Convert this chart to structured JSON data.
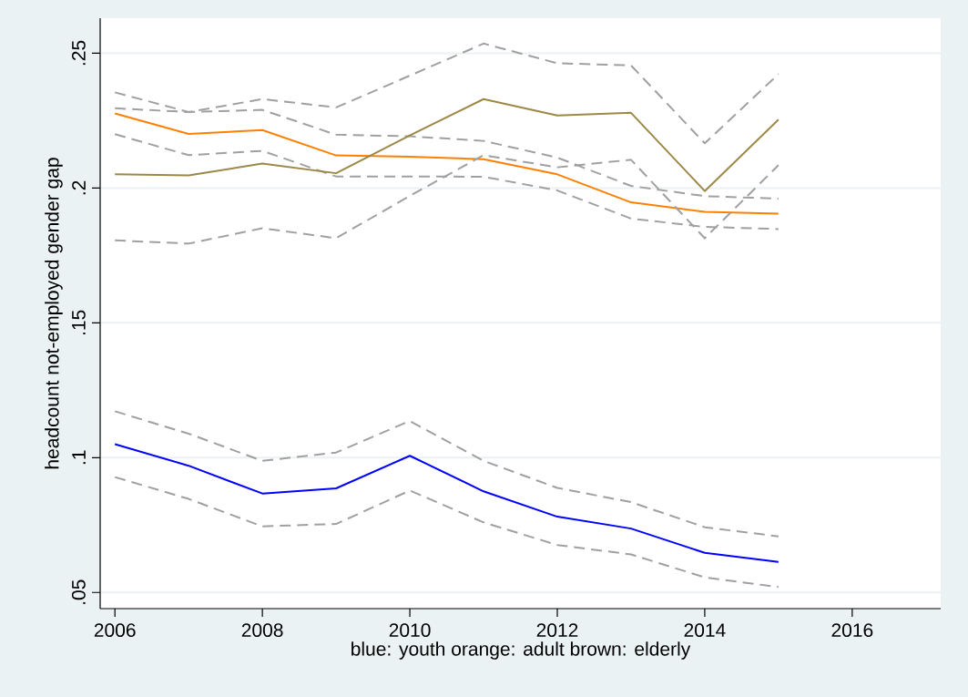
{
  "chart_data": {
    "type": "line",
    "xlabel": "blue: youth  orange: adult  brown: elderly",
    "ylabel": "headcount not-employed gender gap",
    "x": [
      2006,
      2007,
      2008,
      2009,
      2010,
      2011,
      2012,
      2013,
      2014,
      2015
    ],
    "series": [
      {
        "color": "#0000ff",
        "line_style": "solid",
        "values": [
          0.105,
          0.097,
          0.0867,
          0.0886,
          0.1007,
          0.0875,
          0.0781,
          0.0737,
          0.0647,
          0.0613
        ]
      },
      {
        "color": "#a0a0a0",
        "line_style": "dashed",
        "values": [
          0.1172,
          0.1089,
          0.0988,
          0.1019,
          0.1136,
          0.0988,
          0.0888,
          0.0835,
          0.0742,
          0.0708
        ]
      },
      {
        "color": "#a0a0a0",
        "line_style": "dashed",
        "values": [
          0.0928,
          0.0847,
          0.0745,
          0.0754,
          0.0878,
          0.076,
          0.0676,
          0.0641,
          0.0556,
          0.052
        ]
      },
      {
        "color": "#ff8000",
        "line_style": "solid",
        "values": [
          0.2277,
          0.2201,
          0.2215,
          0.2121,
          0.2116,
          0.2107,
          0.2051,
          0.1947,
          0.1912,
          0.1905
        ]
      },
      {
        "color": "#a0a0a0",
        "line_style": "dashed",
        "values": [
          0.2296,
          0.2282,
          0.229,
          0.2198,
          0.2192,
          0.2175,
          0.2113,
          0.2008,
          0.197,
          0.1961
        ]
      },
      {
        "color": "#a0a0a0",
        "line_style": "dashed",
        "values": [
          0.22,
          0.2122,
          0.2138,
          0.2043,
          0.2043,
          0.2042,
          0.1991,
          0.1887,
          0.1856,
          0.1848
        ]
      },
      {
        "color": "#9c8847",
        "line_style": "solid",
        "values": [
          0.2051,
          0.2047,
          0.2091,
          0.2055,
          0.2195,
          0.233,
          0.2269,
          0.2279,
          0.1989,
          0.2254
        ]
      },
      {
        "color": "#a0a0a0",
        "line_style": "dashed",
        "values": [
          0.2355,
          0.2282,
          0.233,
          0.2299,
          0.2417,
          0.2536,
          0.2463,
          0.2455,
          0.2166,
          0.2423
        ]
      },
      {
        "color": "#a0a0a0",
        "line_style": "dashed",
        "values": [
          0.1806,
          0.1794,
          0.1851,
          0.1814,
          0.1971,
          0.2122,
          0.2077,
          0.2105,
          0.1814,
          0.2085
        ]
      }
    ],
    "xlim": [
      2005.8,
      2017.2
    ],
    "ylim": [
      0.044,
      0.263
    ],
    "xticks": [
      2006,
      2008,
      2010,
      2012,
      2014,
      2016
    ],
    "yticks": [
      {
        "value": 0.05,
        "label": ".05"
      },
      {
        "value": 0.1,
        "label": ".1"
      },
      {
        "value": 0.15,
        "label": ".15"
      },
      {
        "value": 0.2,
        "label": ".2"
      },
      {
        "value": 0.25,
        "label": ".25"
      }
    ],
    "grid": "y",
    "marker": "none"
  }
}
